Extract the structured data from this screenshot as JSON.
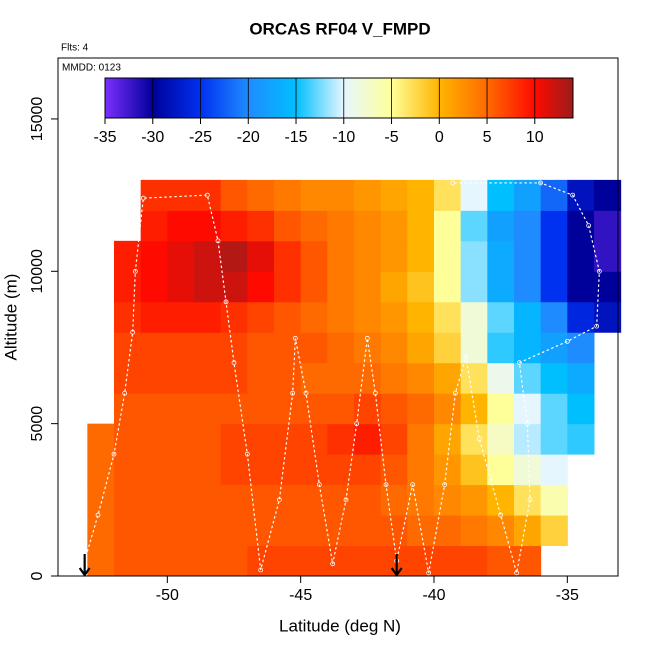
{
  "chart_data": {
    "type": "heatmap",
    "title": "ORCAS RF04 V_FMPD",
    "subtitle": "Flts: 4",
    "annotation": "MMDD: 0123",
    "x_label": "Latitude (deg N)",
    "y_label": "Altitude (m)",
    "xlim": [
      -54.1,
      -33.1
    ],
    "ylim": [
      0,
      17000
    ],
    "xticks": [
      -50,
      -45,
      -40,
      -35
    ],
    "yticks": [
      0,
      5000,
      10000,
      15000
    ],
    "x_edges": [
      -53,
      -52,
      -51,
      -50,
      -49,
      -48,
      -47,
      -46,
      -45,
      -44,
      -43,
      -42,
      -41,
      -40,
      -39,
      -38,
      -37,
      -36,
      -35,
      -34,
      -33
    ],
    "y_edges": [
      0,
      1000,
      2000,
      3000,
      4000,
      5000,
      6000,
      7000,
      8000,
      9000,
      10000,
      11000,
      12000,
      13000
    ],
    "z": [
      [
        5,
        6,
        6,
        6,
        6,
        6,
        7,
        7,
        7,
        7,
        7,
        7,
        7,
        7,
        7,
        6,
        6,
        null,
        null,
        null
      ],
      [
        5,
        6,
        6,
        6,
        6,
        6,
        6,
        6,
        6,
        6,
        6,
        6,
        5,
        5,
        4,
        3,
        1,
        -2,
        null,
        null
      ],
      [
        5,
        6,
        6,
        6,
        6,
        6,
        6,
        6,
        6,
        6,
        6,
        5,
        4,
        3,
        2,
        0,
        -3,
        -6,
        null,
        null
      ],
      [
        5,
        6,
        6,
        6,
        6,
        7,
        7,
        7,
        7,
        7,
        7,
        6,
        4,
        2,
        -1,
        -5,
        -8,
        -10,
        null,
        null
      ],
      [
        5,
        6,
        6,
        6,
        6,
        7,
        7,
        7,
        7,
        8,
        9,
        7,
        4,
        1,
        -3,
        -7,
        -11,
        -13,
        -14,
        null
      ],
      [
        null,
        6,
        6,
        6,
        6,
        6,
        6,
        6,
        6,
        6,
        7,
        6,
        5,
        3,
        0,
        -5,
        -10,
        -13,
        -15,
        null
      ],
      [
        null,
        7,
        7,
        7,
        7,
        7,
        6,
        6,
        5,
        5,
        5,
        4,
        3,
        1,
        -3,
        -9,
        -13,
        -15,
        -17,
        null
      ],
      [
        null,
        7,
        7,
        7,
        7,
        7,
        6,
        6,
        6,
        5,
        4,
        3,
        1,
        -2,
        -8,
        -14,
        -16,
        -18,
        -20,
        null
      ],
      [
        null,
        8,
        9,
        9,
        9,
        8,
        7,
        6,
        5,
        4,
        3,
        2,
        0,
        -3,
        -8,
        -13,
        -16,
        -20,
        -26,
        -28
      ],
      [
        null,
        9,
        10,
        11,
        12,
        12,
        10,
        8,
        6,
        4,
        3,
        1,
        -1,
        -5,
        -12,
        -17,
        -20,
        -25,
        -30,
        -30
      ],
      [
        null,
        9,
        10,
        11,
        12,
        13,
        11,
        8,
        6,
        4,
        3,
        2,
        0,
        -5,
        -12,
        -17,
        -20,
        -25,
        -30,
        -32
      ],
      [
        null,
        null,
        9,
        10,
        10,
        9,
        8,
        6,
        5,
        4,
        3,
        2,
        0,
        -5,
        -13,
        -18,
        -20,
        -25,
        -30,
        -32
      ],
      [
        null,
        null,
        8,
        8,
        8,
        6,
        5,
        4,
        3,
        3,
        2,
        1,
        0,
        -3,
        -10,
        -15,
        -18,
        -22,
        -28,
        -30
      ]
    ],
    "colorbar": {
      "lim": [
        -35,
        14
      ],
      "ticks": [
        -35,
        -30,
        -25,
        -20,
        -15,
        -10,
        -5,
        0,
        5,
        10
      ],
      "colors": [
        "#7b2fff",
        "#00009a",
        "#0030f0",
        "#1e8cff",
        "#00bfff",
        "#e6f6ff",
        "#ffff99",
        "#ffb400",
        "#ff6a00",
        "#ff0a00",
        "#9b1c1c"
      ]
    },
    "track": {
      "x": [
        -53.1,
        -52.6,
        -52,
        -51.6,
        -51.3,
        -51.2,
        -50.9,
        -48.5,
        -48.1,
        -47.8,
        -47.5,
        -47,
        -46.5,
        -45.8,
        -45.3,
        -45.2,
        -44.8,
        -44.3,
        -43.8,
        -43.3,
        -42.9,
        -42.5,
        -42.2,
        -41.8,
        -41.4,
        -40.8,
        -40.2,
        -39.6,
        -39.2,
        -38.8,
        -38.3,
        -37.5,
        -36.9,
        -36.4,
        -36.5,
        -36.8,
        -35,
        -33.9,
        -33.8,
        -34.2,
        -34.8,
        -36,
        -39.3
      ],
      "y": [
        500,
        2000,
        4000,
        6000,
        8000,
        10000,
        12400,
        12500,
        11000,
        9000,
        7000,
        4000,
        200,
        2500,
        6000,
        7800,
        6000,
        3000,
        400,
        2500,
        5000,
        7800,
        6000,
        3000,
        500,
        3000,
        100,
        3000,
        6000,
        7200,
        4500,
        2000,
        100,
        2500,
        5000,
        7000,
        7700,
        8200,
        10000,
        11500,
        12500,
        12900,
        12900
      ]
    },
    "arrows_x": [
      -53.1,
      -41.4
    ]
  }
}
